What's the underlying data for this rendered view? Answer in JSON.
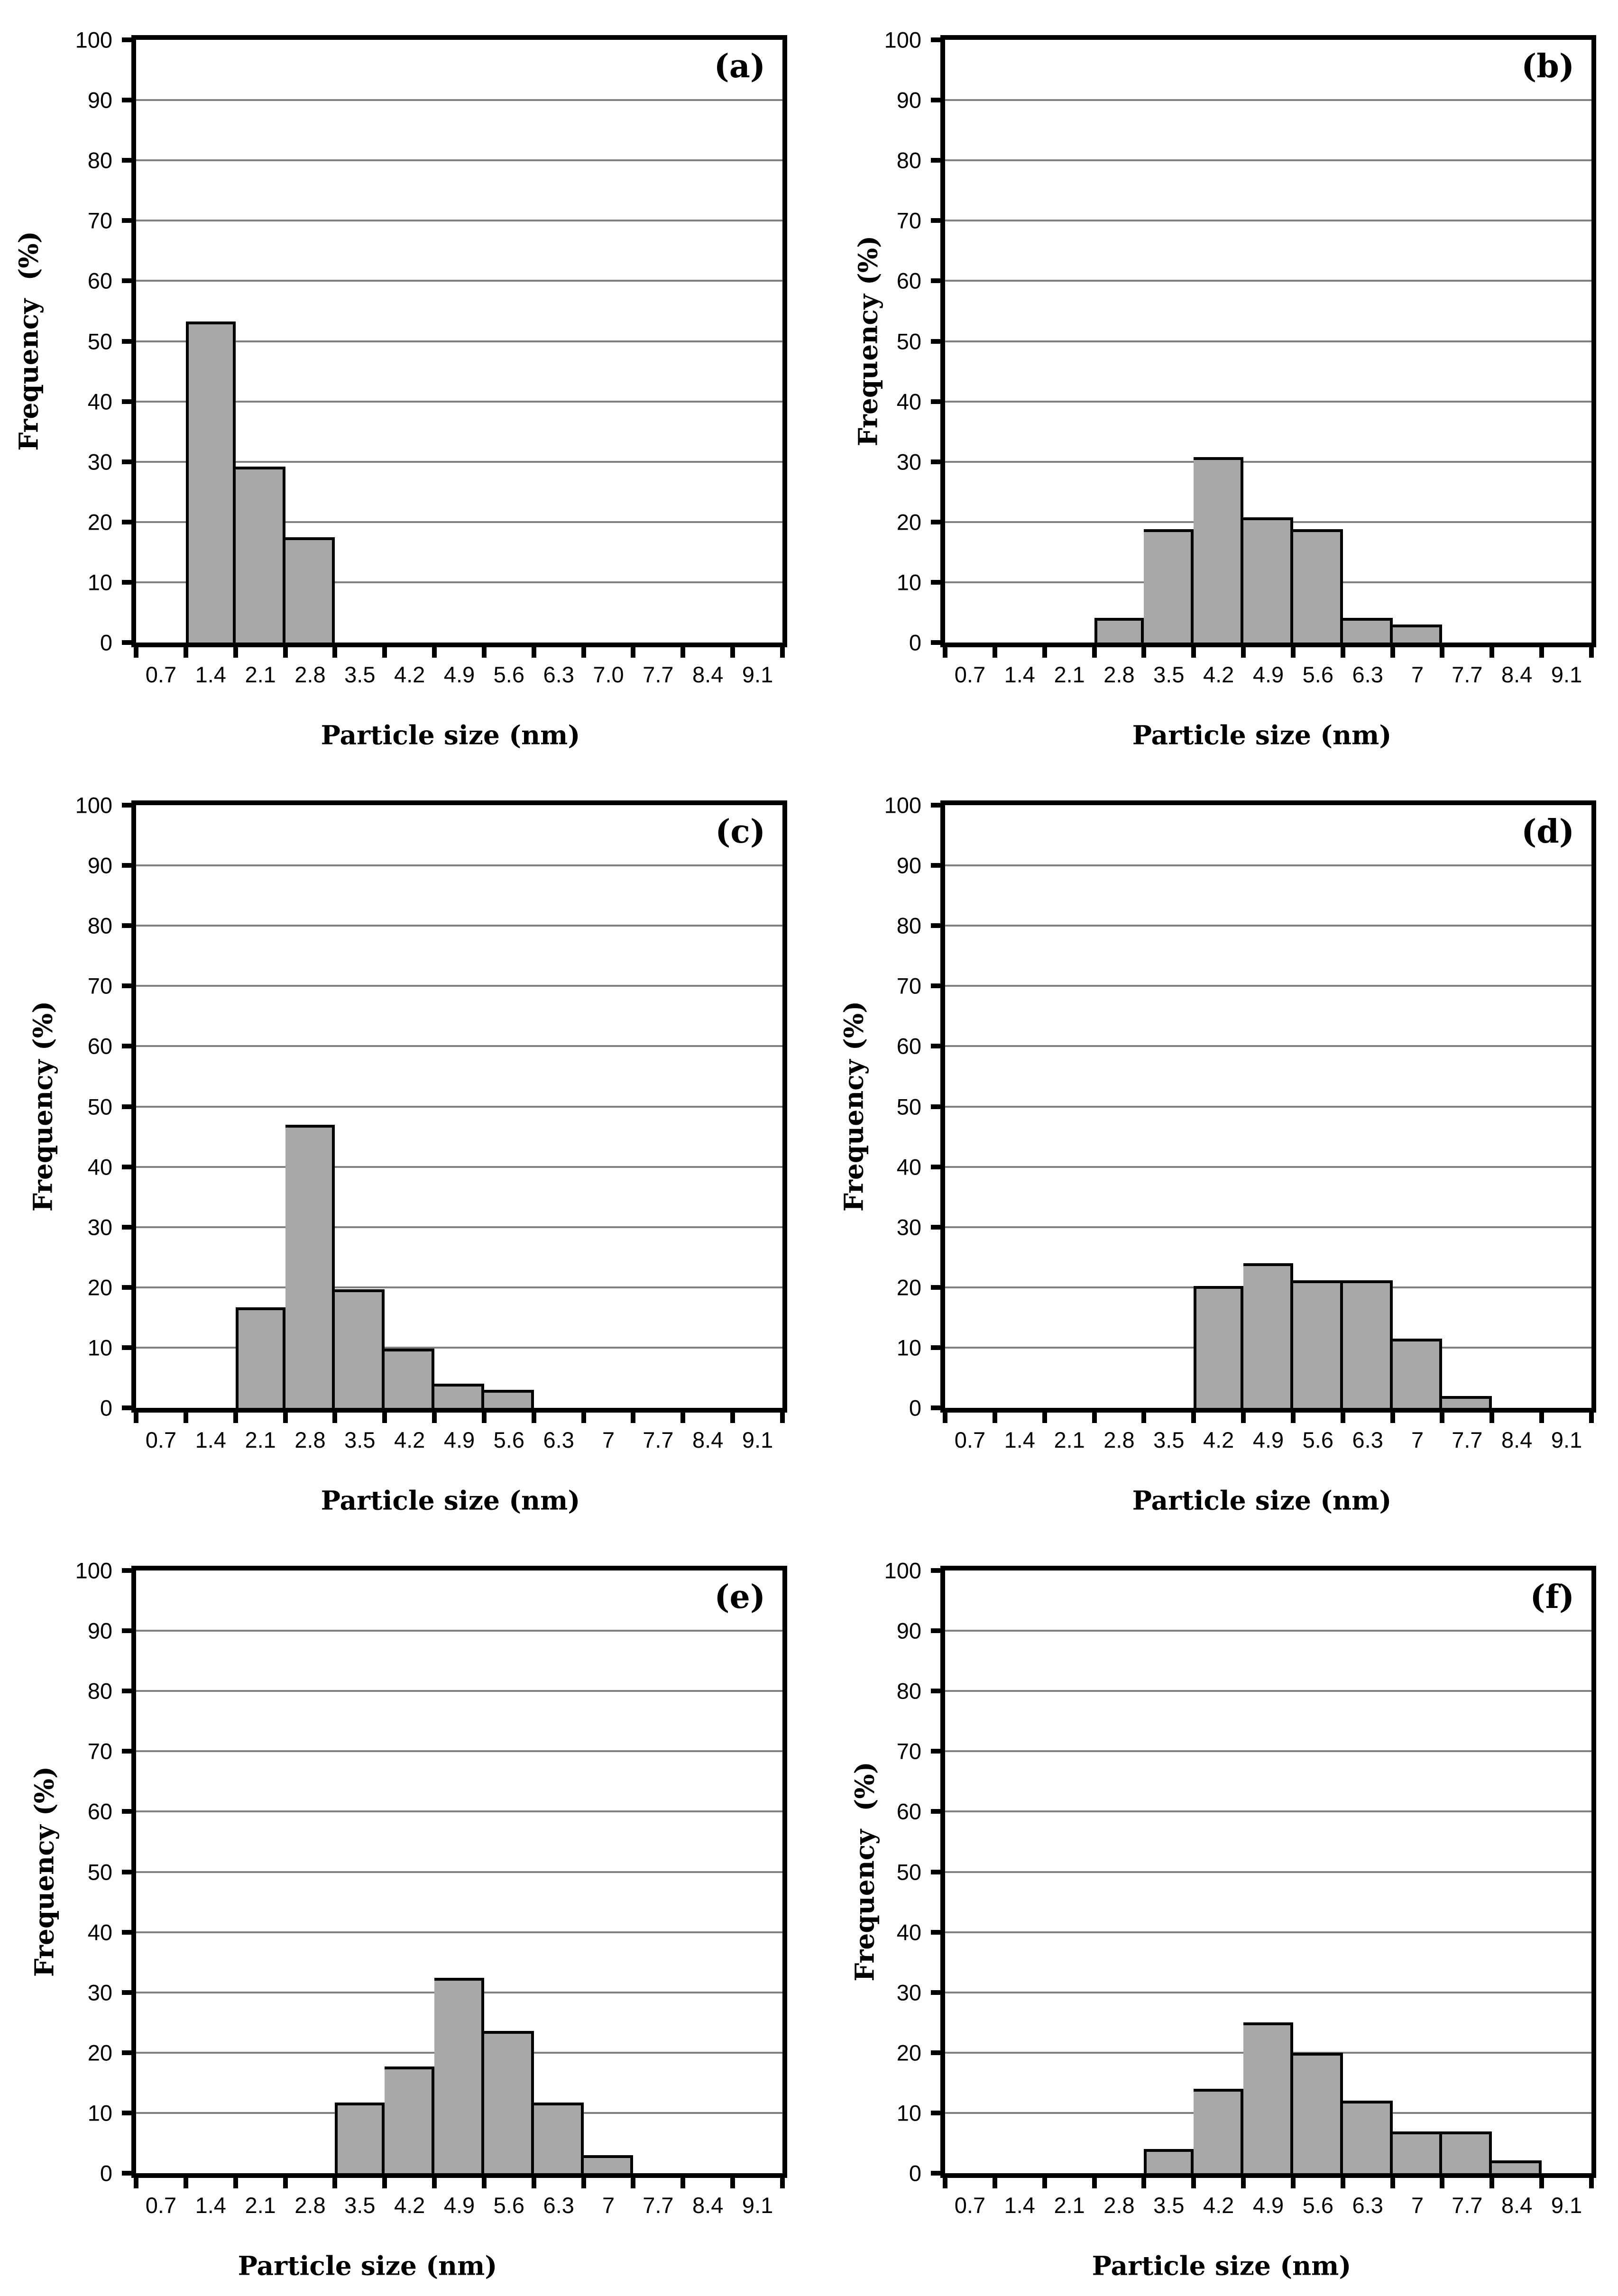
{
  "colors": {
    "bar_fill": "#a8a8a8",
    "bar_border": "#000000",
    "gridline": "#808080",
    "axis": "#000000",
    "background": "#ffffff"
  },
  "chart_data": [
    {
      "panel_label": "(a)",
      "type": "bar",
      "title": "",
      "xlabel": "Particle size (nm)",
      "ylabel": "Frequency  (%)",
      "categories": [
        "0.7",
        "1.4",
        "2.1",
        "2.8",
        "3.5",
        "4.2",
        "4.9",
        "5.6",
        "6.3",
        "7.0",
        "7.7",
        "8.4",
        "9.1"
      ],
      "values": [
        0,
        53.3,
        29.2,
        17.5,
        0,
        0,
        0,
        0,
        0,
        0,
        0,
        0,
        0
      ],
      "ylim": [
        0,
        100
      ],
      "yticks": [
        0,
        10,
        20,
        30,
        40,
        50,
        60,
        70,
        80,
        90,
        100
      ],
      "grid": true,
      "legend": "none",
      "layout": {
        "ylabel_x": 60,
        "xlabel_x": 950
      }
    },
    {
      "panel_label": "(b)",
      "type": "bar",
      "title": "",
      "xlabel": "Particle size (nm)",
      "ylabel": "Frequency (%)",
      "categories": [
        "0.7",
        "1.4",
        "2.1",
        "2.8",
        "3.5",
        "4.2",
        "4.9",
        "5.6",
        "6.3",
        "7",
        "7.7",
        "8.4",
        "9.1"
      ],
      "values": [
        0,
        0,
        0,
        4.1,
        18.8,
        30.8,
        20.8,
        18.8,
        4.1,
        3.0,
        0,
        0,
        0
      ],
      "ylim": [
        0,
        100
      ],
      "yticks": [
        0,
        10,
        20,
        30,
        40,
        50,
        60,
        70,
        80,
        90,
        100
      ],
      "grid": true,
      "legend": "none",
      "layout": {
        "ylabel_x": 124,
        "xlabel_x": 955
      }
    },
    {
      "panel_label": "(c)",
      "type": "bar",
      "title": "",
      "xlabel": "Particle size (nm)",
      "ylabel": "Frequency (%)",
      "categories": [
        "0.7",
        "1.4",
        "2.1",
        "2.8",
        "3.5",
        "4.2",
        "4.9",
        "5.6",
        "6.3",
        "7",
        "7.7",
        "8.4",
        "9.1"
      ],
      "values": [
        0,
        0,
        16.7,
        47.0,
        19.7,
        9.8,
        4.0,
        3.0,
        0,
        0,
        0,
        0,
        0
      ],
      "ylim": [
        0,
        100
      ],
      "yticks": [
        0,
        10,
        20,
        30,
        40,
        50,
        60,
        70,
        80,
        90,
        100
      ],
      "grid": true,
      "legend": "none",
      "layout": {
        "ylabel_x": 90,
        "xlabel_x": 950
      }
    },
    {
      "panel_label": "(d)",
      "type": "bar",
      "title": "",
      "xlabel": "Particle size (nm)",
      "ylabel": "Frequency (%)",
      "categories": [
        "0.7",
        "1.4",
        "2.1",
        "2.8",
        "3.5",
        "4.2",
        "4.9",
        "5.6",
        "6.3",
        "7",
        "7.7",
        "8.4",
        "9.1"
      ],
      "values": [
        0,
        0,
        0,
        0,
        0,
        20.2,
        24.0,
        21.2,
        21.2,
        11.5,
        2.0,
        0,
        0
      ],
      "ylim": [
        0,
        100
      ],
      "yticks": [
        0,
        10,
        20,
        30,
        40,
        50,
        60,
        70,
        80,
        90,
        100
      ],
      "grid": true,
      "legend": "none",
      "layout": {
        "ylabel_x": 94,
        "xlabel_x": 955
      }
    },
    {
      "panel_label": "(e)",
      "type": "bar",
      "title": "",
      "xlabel": "Particle size (nm)",
      "ylabel": "Frequency (%)",
      "categories": [
        "0.7",
        "1.4",
        "2.1",
        "2.8",
        "3.5",
        "4.2",
        "4.9",
        "5.6",
        "6.3",
        "7",
        "7.7",
        "8.4",
        "9.1"
      ],
      "values": [
        0,
        0,
        0,
        0,
        11.7,
        17.7,
        32.4,
        23.6,
        11.7,
        3.0,
        0,
        0,
        0
      ],
      "ylim": [
        0,
        100
      ],
      "yticks": [
        0,
        10,
        20,
        30,
        40,
        50,
        60,
        70,
        80,
        90,
        100
      ],
      "grid": true,
      "legend": "none",
      "layout": {
        "ylabel_x": 93,
        "xlabel_x": 775
      }
    },
    {
      "panel_label": "(f)",
      "type": "bar",
      "title": "",
      "xlabel": "Particle size (nm)",
      "ylabel": "Frequency  (%)",
      "categories": [
        "0.7",
        "1.4",
        "2.1",
        "2.8",
        "3.5",
        "4.2",
        "4.9",
        "5.6",
        "6.3",
        "7",
        "7.7",
        "8.4",
        "9.1"
      ],
      "values": [
        0,
        0,
        0,
        0,
        4.0,
        14.0,
        25.0,
        20.0,
        12.0,
        6.9,
        6.9,
        2.1,
        0
      ],
      "ylim": [
        0,
        100
      ],
      "yticks": [
        0,
        10,
        20,
        30,
        40,
        50,
        60,
        70,
        80,
        90,
        100
      ],
      "grid": true,
      "legend": "none",
      "layout": {
        "ylabel_x": 117,
        "xlabel_x": 870
      }
    }
  ]
}
